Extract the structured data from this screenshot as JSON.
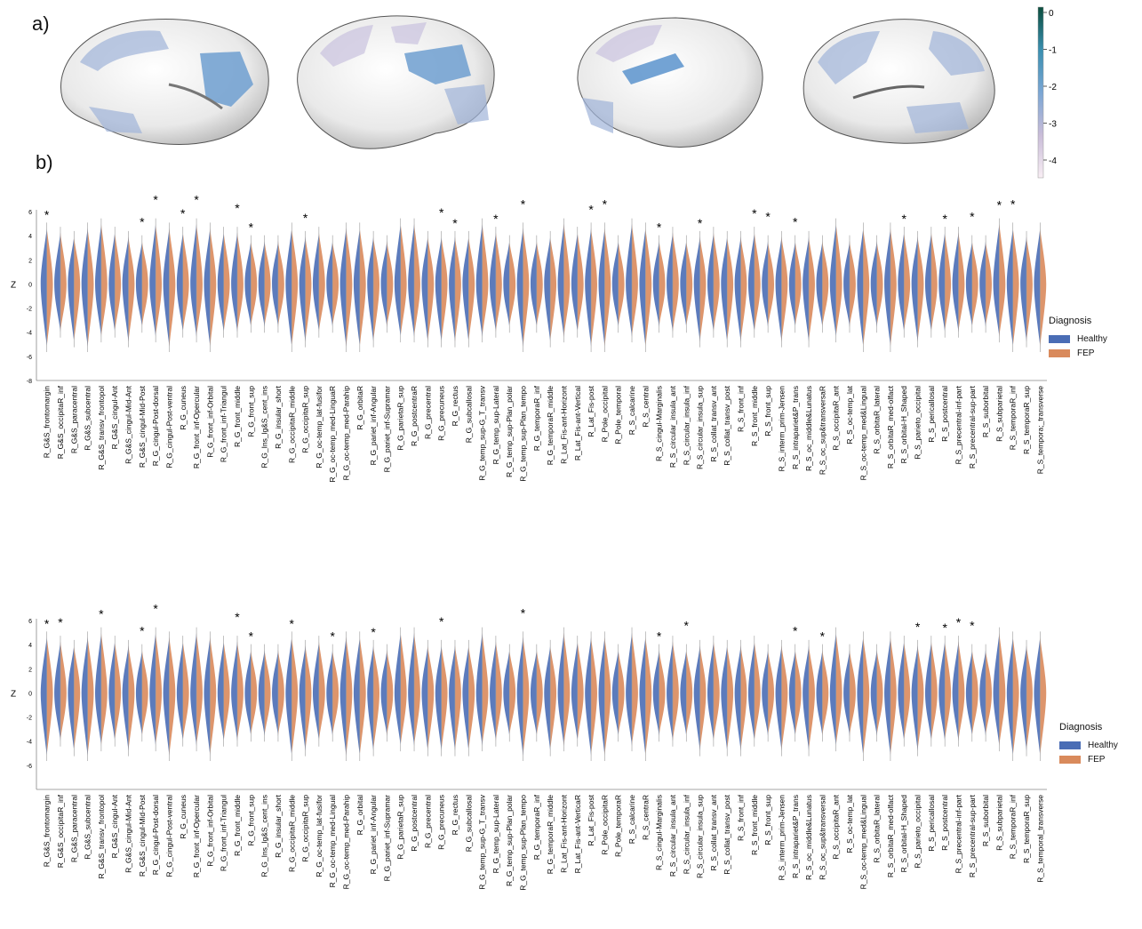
{
  "panel_a_label": "a)",
  "panel_b_label": "b)",
  "colorbar_ticks": [
    "0",
    "-1",
    "-2",
    "-3",
    "-4"
  ],
  "colorbar_colors": [
    "#0b4d3d",
    "#3a8fb0",
    "#7aa6d4",
    "#c9bcd8",
    "#f8eef4"
  ],
  "series_colors": {
    "Healthy": "#4a6db5",
    "FEP": "#d98a5c"
  },
  "chart_data": [
    {
      "type": "violin",
      "ylabel": "Z",
      "ylim": [
        -8,
        6
      ],
      "yticks": [
        6,
        4,
        2,
        0,
        -2,
        -4,
        -6,
        -8
      ],
      "legend": {
        "title": "Diagnosis",
        "items": [
          "Healthy",
          "FEP"
        ],
        "position": "right"
      },
      "series": [
        {
          "name": "Healthy"
        },
        {
          "name": "FEP"
        }
      ],
      "categories": [
        "R_G&S_frontomargin",
        "R_G&S_occipitaR_inf",
        "R_G&S_paracentral",
        "R_G&S_subcentral",
        "R_G&S_transv_frontopol",
        "R_G&S_cingul-Ant",
        "R_G&S_cingul-Mid-Ant",
        "R_G&S_cingul-Mid-Post",
        "R_G_cingul-Post-dorsal",
        "R_G_cingul-Post-ventral",
        "R_G_cuneus",
        "R_G_front_inf-Opercular",
        "R_G_front_inf-Orbital",
        "R_G_front_inf-Triangul",
        "R_G_front_middle",
        "R_G_front_sup",
        "R_G_Ins_lg&S_cent_ins",
        "R_G_insular_short",
        "R_G_occipitaR_middle",
        "R_G_occipitaR_sup",
        "R_G_oc-temp_lat-fusifor",
        "R_G_oc-temp_med-LinguaR",
        "R_G_oc-temp_med-Parahip",
        "R_G_orbitaR",
        "R_G_pariet_inf-Angular",
        "R_G_pariet_inf-Supramar",
        "R_G_parietaR_sup",
        "R_G_postcentraR",
        "R_G_precentral",
        "R_G_precuneus",
        "R_G_rectus",
        "R_G_subcallosal",
        "R_G_temp_sup-G_T_transv",
        "R_G_temp_sup-Lateral",
        "R_G_temp_sup-Plan_polar",
        "R_G_temp_sup-Plan_tempo",
        "R_G_temporaR_inf",
        "R_G_temporaR_middle",
        "R_Lat_Fis-ant-Horizont",
        "R_Lat_Fis-ant-Vertical",
        "R_Lat_Fis-post",
        "R_Pole_occipital",
        "R_Pole_temporal",
        "R_S_calcarine",
        "R_S_central",
        "R_S_cingul-Marginalis",
        "R_S_circular_insula_ant",
        "R_S_circular_insula_inf",
        "R_S_circular_insula_sup",
        "R_S_collat_transv_ant",
        "R_S_collat_transv_post",
        "R_S_front_inf",
        "R_S_front_middle",
        "R_S_front_sup",
        "R_S_interm_prim-Jensen",
        "R_S_intrapariet&P_trans",
        "R_S_oc_middle&Lunatus",
        "R_S_oc_sup&transversaR",
        "R_S_occipitaR_ant",
        "R_S_oc-temp_lat",
        "R_S_oc-temp_med&Lingual",
        "R_S_orbitaR_lateral",
        "R_S_orbitaR_med-olfact",
        "R_S_orbital-H_Shaped",
        "R_S_parieto_occipital",
        "R_S_pericallosal",
        "R_S_postcentral",
        "R_S_precentral-inf-part",
        "R_S_precentral-sup-part",
        "R_S_suborbital",
        "R_S_subparietal",
        "R_S_temporaR_inf",
        "R_S_temporaR_sup",
        "R_S_tempora;_transverse"
      ],
      "significant": [
        "R_G&S_frontomargin",
        "R_G&S_cingul-Mid-Post",
        "R_G_cingul-Post-dorsal",
        "R_G_cuneus",
        "R_G_front_inf-Opercular",
        "R_G_front_middle",
        "R_G_front_sup",
        "R_G_occipitaR_sup",
        "R_G_precuneus",
        "R_G_rectus",
        "R_G_temp_sup-Lateral",
        "R_G_temp_sup-Plan_tempo",
        "R_Lat_Fis-post",
        "R_Pole_occipital",
        "R_S_cingul-Marginalis",
        "R_S_circular_insula_sup",
        "R_S_front_middle",
        "R_S_front_sup",
        "R_S_intrapariet&P_trans",
        "R_S_orbital-H_Shaped",
        "R_S_postcentral",
        "R_S_precentral-sup-part",
        "R_S_subparietal",
        "R_S_temporaR_inf"
      ]
    },
    {
      "type": "violin",
      "ylabel": "Z",
      "ylim": [
        -8,
        6
      ],
      "yticks": [
        6,
        4,
        2,
        0,
        -2,
        -4,
        -6
      ],
      "legend": {
        "title": "Diagnosis",
        "items": [
          "Healthy",
          "FEP"
        ],
        "position": "right"
      },
      "series": [
        {
          "name": "Healthy"
        },
        {
          "name": "FEP"
        }
      ],
      "categories": [
        "R_G&S_frontomargin",
        "R_G&S_occipitaR_inf",
        "R_G&S_paracentral",
        "R_G&S_subcentral",
        "R_G&S_transv_frontopol",
        "R_G&S_cingul-Ant",
        "R_G&S_cingul-Mid-Ant",
        "R_G&S_cingul-Mid-Post",
        "R_G_cingul-Post-dorsal",
        "R_G_cingul-Post-ventral",
        "R_G_cuneus",
        "R_G_front_inf-Opercular",
        "R_G_front_inf-Orbital",
        "R_G_front_inf-Triangul",
        "R_G_front_middle",
        "R_G_front_sup",
        "R_G_Ins_lg&S_cent_ins",
        "R_G_insular_short",
        "R_G_occipitaR_middle",
        "R_G_occipitaR_sup",
        "R_G_oc-temp_lat-fusifor",
        "R_G_oc-temp_med-Lingual",
        "R_G_oc-temp_med-Parahip",
        "R_G_orbital",
        "R_G_pariet_inf-Angular",
        "R_G_pariet_inf-Supramar",
        "R_G_parietaR_sup",
        "R_G_postcentral",
        "R_G_precentral",
        "R_G_precuneus",
        "R_G_rectus",
        "R_G_subcallosal",
        "R_G_temp_sup-G_T_transv",
        "R_G_temp_sup-Lateral",
        "R_G_temp_sup-Plan_polar",
        "R_G_temp_sup-Plan_tempo",
        "R_G_temporaR_inf",
        "R_G_temporaR_middle",
        "R_Lat_Fis-ant-Horizont",
        "R_Lat_Fis-ant-VerticaR",
        "R_Lat_Fis-post",
        "R_Pole_occipitaR",
        "R_Pole_temporaR",
        "R_S_calcarine",
        "R_S_centraR",
        "R_S_cingul-Marginalis",
        "R_S_circular_insula_ant",
        "R_S_circular_insula_inf",
        "R_S_circular_insula_sup",
        "R_S_collat_transv_ant",
        "R_S_collat_transv_post",
        "R_S_front_inf",
        "R_S_front_middle",
        "R_S_front_sup",
        "R_S_interm_prim-Jensen",
        "R_S_intrapariet&P_trans",
        "R_S_oc_middle&Lunatus",
        "R_S_oc_sup&transversal",
        "R_S_occipitaR_ant",
        "R_S_oc-temp_lat",
        "R_S_oc-temp_med&Lingual",
        "R_S_orbitaR_lateral",
        "R_S_orbitaR_med-olfact",
        "R_S_orbital-H_Shaped",
        "R_S_parieto_occipital",
        "R_S_pericallosal",
        "R_S_postcentral",
        "R_S_precentral-inf-part",
        "R_S_precentral-sup-part",
        "R_S_suborbital",
        "R_S_subparietal",
        "R_S_temporaR_inf",
        "R_S_temporaR_sup",
        "R_S_temporal_transverse"
      ],
      "significant": [
        "R_G&S_frontomargin",
        "R_G&S_occipitaR_inf",
        "R_G&S_transv_frontopol",
        "R_G&S_cingul-Mid-Post",
        "R_G_cingul-Post-dorsal",
        "R_G_front_middle",
        "R_G_front_sup",
        "R_G_occipitaR_middle",
        "R_G_oc-temp_med-Lingual",
        "R_G_pariet_inf-Angular",
        "R_G_precuneus",
        "R_G_temp_sup-Plan_tempo",
        "R_S_cingul-Marginalis",
        "R_S_circular_insula_inf",
        "R_S_intrapariet&P_trans",
        "R_S_oc_sup&transversal",
        "R_S_parieto_occipital",
        "R_S_postcentral",
        "R_S_precentral-inf-part",
        "R_S_precentral-sup-part"
      ]
    }
  ]
}
